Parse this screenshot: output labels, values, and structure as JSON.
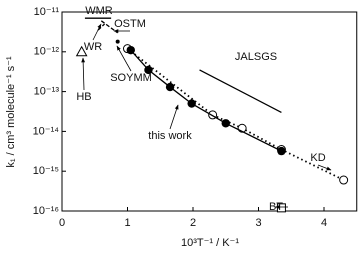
{
  "chart_data": {
    "type": "scatter",
    "log_y": true,
    "x_label": "10³T⁻¹ / K⁻¹",
    "y_label": "k₁ / cm³ molecule⁻¹ s⁻¹",
    "xlim": [
      0,
      4.5
    ],
    "xticks": [
      0,
      1,
      2,
      3,
      4
    ],
    "ylim": [
      1e-16,
      1e-11
    ],
    "yticks": [
      {
        "value": 1e-16,
        "label": "10⁻¹⁶"
      },
      {
        "value": 1e-15,
        "label": "10⁻¹⁵"
      },
      {
        "value": 1e-14,
        "label": "10⁻¹⁴"
      },
      {
        "value": 1e-13,
        "label": "10⁻¹³"
      },
      {
        "value": 1e-12,
        "label": "10⁻¹²"
      },
      {
        "value": 1e-11,
        "label": "10⁻¹¹"
      }
    ],
    "series": [
      {
        "name": "KD",
        "color": "#000000",
        "marker": "open-circle",
        "line": "dotted",
        "x": [
          1.0,
          2.3,
          2.75,
          3.35,
          4.3
        ],
        "values": [
          1.2e-12,
          2.6e-14,
          1.2e-14,
          3.5e-15,
          6e-16
        ]
      },
      {
        "name": "this work",
        "color": "#000000",
        "marker": "filled-circle",
        "line": "solid",
        "x": [
          1.05,
          1.32,
          1.65,
          1.98,
          2.5,
          3.35
        ],
        "values": [
          1.1e-12,
          3.5e-13,
          1.3e-13,
          5e-14,
          1.6e-14,
          3.2e-15
        ]
      },
      {
        "name": "JALSGS",
        "color": "#000000",
        "marker": "none",
        "line": "solid",
        "x": [
          2.1,
          3.35
        ],
        "values": [
          3.5e-13,
          3e-14
        ]
      },
      {
        "name": "WMR",
        "color": "#000000",
        "marker": "none",
        "line": "solid",
        "x": [
          0.35,
          0.75
        ],
        "values": [
          7e-12,
          7e-12
        ]
      },
      {
        "name": "OSTM",
        "color": "#000000",
        "marker": "none",
        "line": "dashed",
        "x": [
          0.6,
          0.85
        ],
        "values": [
          6e-12,
          3e-12
        ]
      },
      {
        "name": "WR",
        "color": "#000000",
        "marker": "none",
        "line": "dashed",
        "x": [
          0.55,
          0.65
        ],
        "values": [
          3.5e-12,
          5e-12
        ]
      },
      {
        "name": "SOYMM",
        "color": "#000000",
        "marker": "small-dot",
        "line": "none",
        "x": [
          0.85
        ],
        "values": [
          1.8e-12
        ]
      },
      {
        "name": "HB",
        "color": "#000000",
        "marker": "open-triangle",
        "line": "none",
        "x": [
          0.3
        ],
        "values": [
          1e-12
        ]
      },
      {
        "name": "BT",
        "color": "#000000",
        "marker": "open-square",
        "line": "none",
        "x": [
          3.35
        ],
        "values": [
          1.2e-16
        ]
      }
    ]
  }
}
